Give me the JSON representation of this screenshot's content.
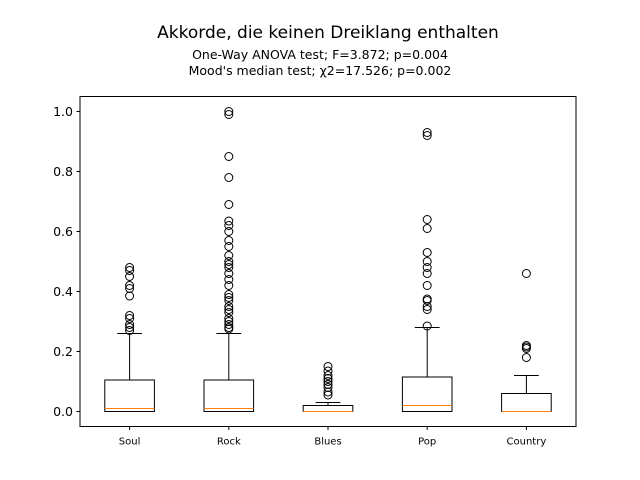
{
  "chart_data": {
    "type": "box",
    "title": "Akkorde, die keinen Dreiklang enthalten",
    "subtitle_lines": [
      "One-Way ANOVA test; F=3.872; p=0.004",
      "Mood's median test; χ2=17.526; p=0.002"
    ],
    "xlabel": "",
    "ylabel": "",
    "ylim": [
      -0.05,
      1.05
    ],
    "yticks": [
      0.0,
      0.2,
      0.4,
      0.6,
      0.8,
      1.0
    ],
    "ytick_labels": [
      "0.0",
      "0.2",
      "0.4",
      "0.6",
      "0.8",
      "1.0"
    ],
    "grid": false,
    "colors": {
      "box": "#000000",
      "median": "#ff7f0e",
      "flier": "#000000"
    },
    "categories": [
      "Soul",
      "Rock",
      "Blues",
      "Pop",
      "Country"
    ],
    "boxes": [
      {
        "name": "Soul",
        "whisker_low": 0.0,
        "q1": 0.0,
        "median": 0.01,
        "q3": 0.105,
        "whisker_high": 0.26,
        "fliers": [
          0.27,
          0.28,
          0.29,
          0.31,
          0.32,
          0.385,
          0.41,
          0.42,
          0.45,
          0.47,
          0.48
        ]
      },
      {
        "name": "Rock",
        "whisker_low": 0.0,
        "q1": 0.0,
        "median": 0.01,
        "q3": 0.105,
        "whisker_high": 0.26,
        "fliers": [
          0.275,
          0.28,
          0.29,
          0.3,
          0.31,
          0.33,
          0.34,
          0.35,
          0.37,
          0.38,
          0.39,
          0.42,
          0.44,
          0.46,
          0.48,
          0.49,
          0.5,
          0.52,
          0.55,
          0.57,
          0.6,
          0.62,
          0.635,
          0.69,
          0.78,
          0.85,
          0.99,
          1.0
        ]
      },
      {
        "name": "Blues",
        "whisker_low": 0.0,
        "q1": 0.0,
        "median": 0.0,
        "q3": 0.02,
        "whisker_high": 0.03,
        "fliers": [
          0.055,
          0.065,
          0.08,
          0.09,
          0.1,
          0.11,
          0.12,
          0.135,
          0.15
        ]
      },
      {
        "name": "Pop",
        "whisker_low": 0.0,
        "q1": 0.0,
        "median": 0.02,
        "q3": 0.115,
        "whisker_high": 0.28,
        "fliers": [
          0.285,
          0.34,
          0.35,
          0.37,
          0.375,
          0.42,
          0.46,
          0.48,
          0.5,
          0.53,
          0.61,
          0.64,
          0.92,
          0.93
        ]
      },
      {
        "name": "Country",
        "whisker_low": 0.0,
        "q1": 0.0,
        "median": 0.0,
        "q3": 0.06,
        "whisker_high": 0.12,
        "fliers": [
          0.18,
          0.21,
          0.215,
          0.22,
          0.46
        ]
      }
    ]
  }
}
